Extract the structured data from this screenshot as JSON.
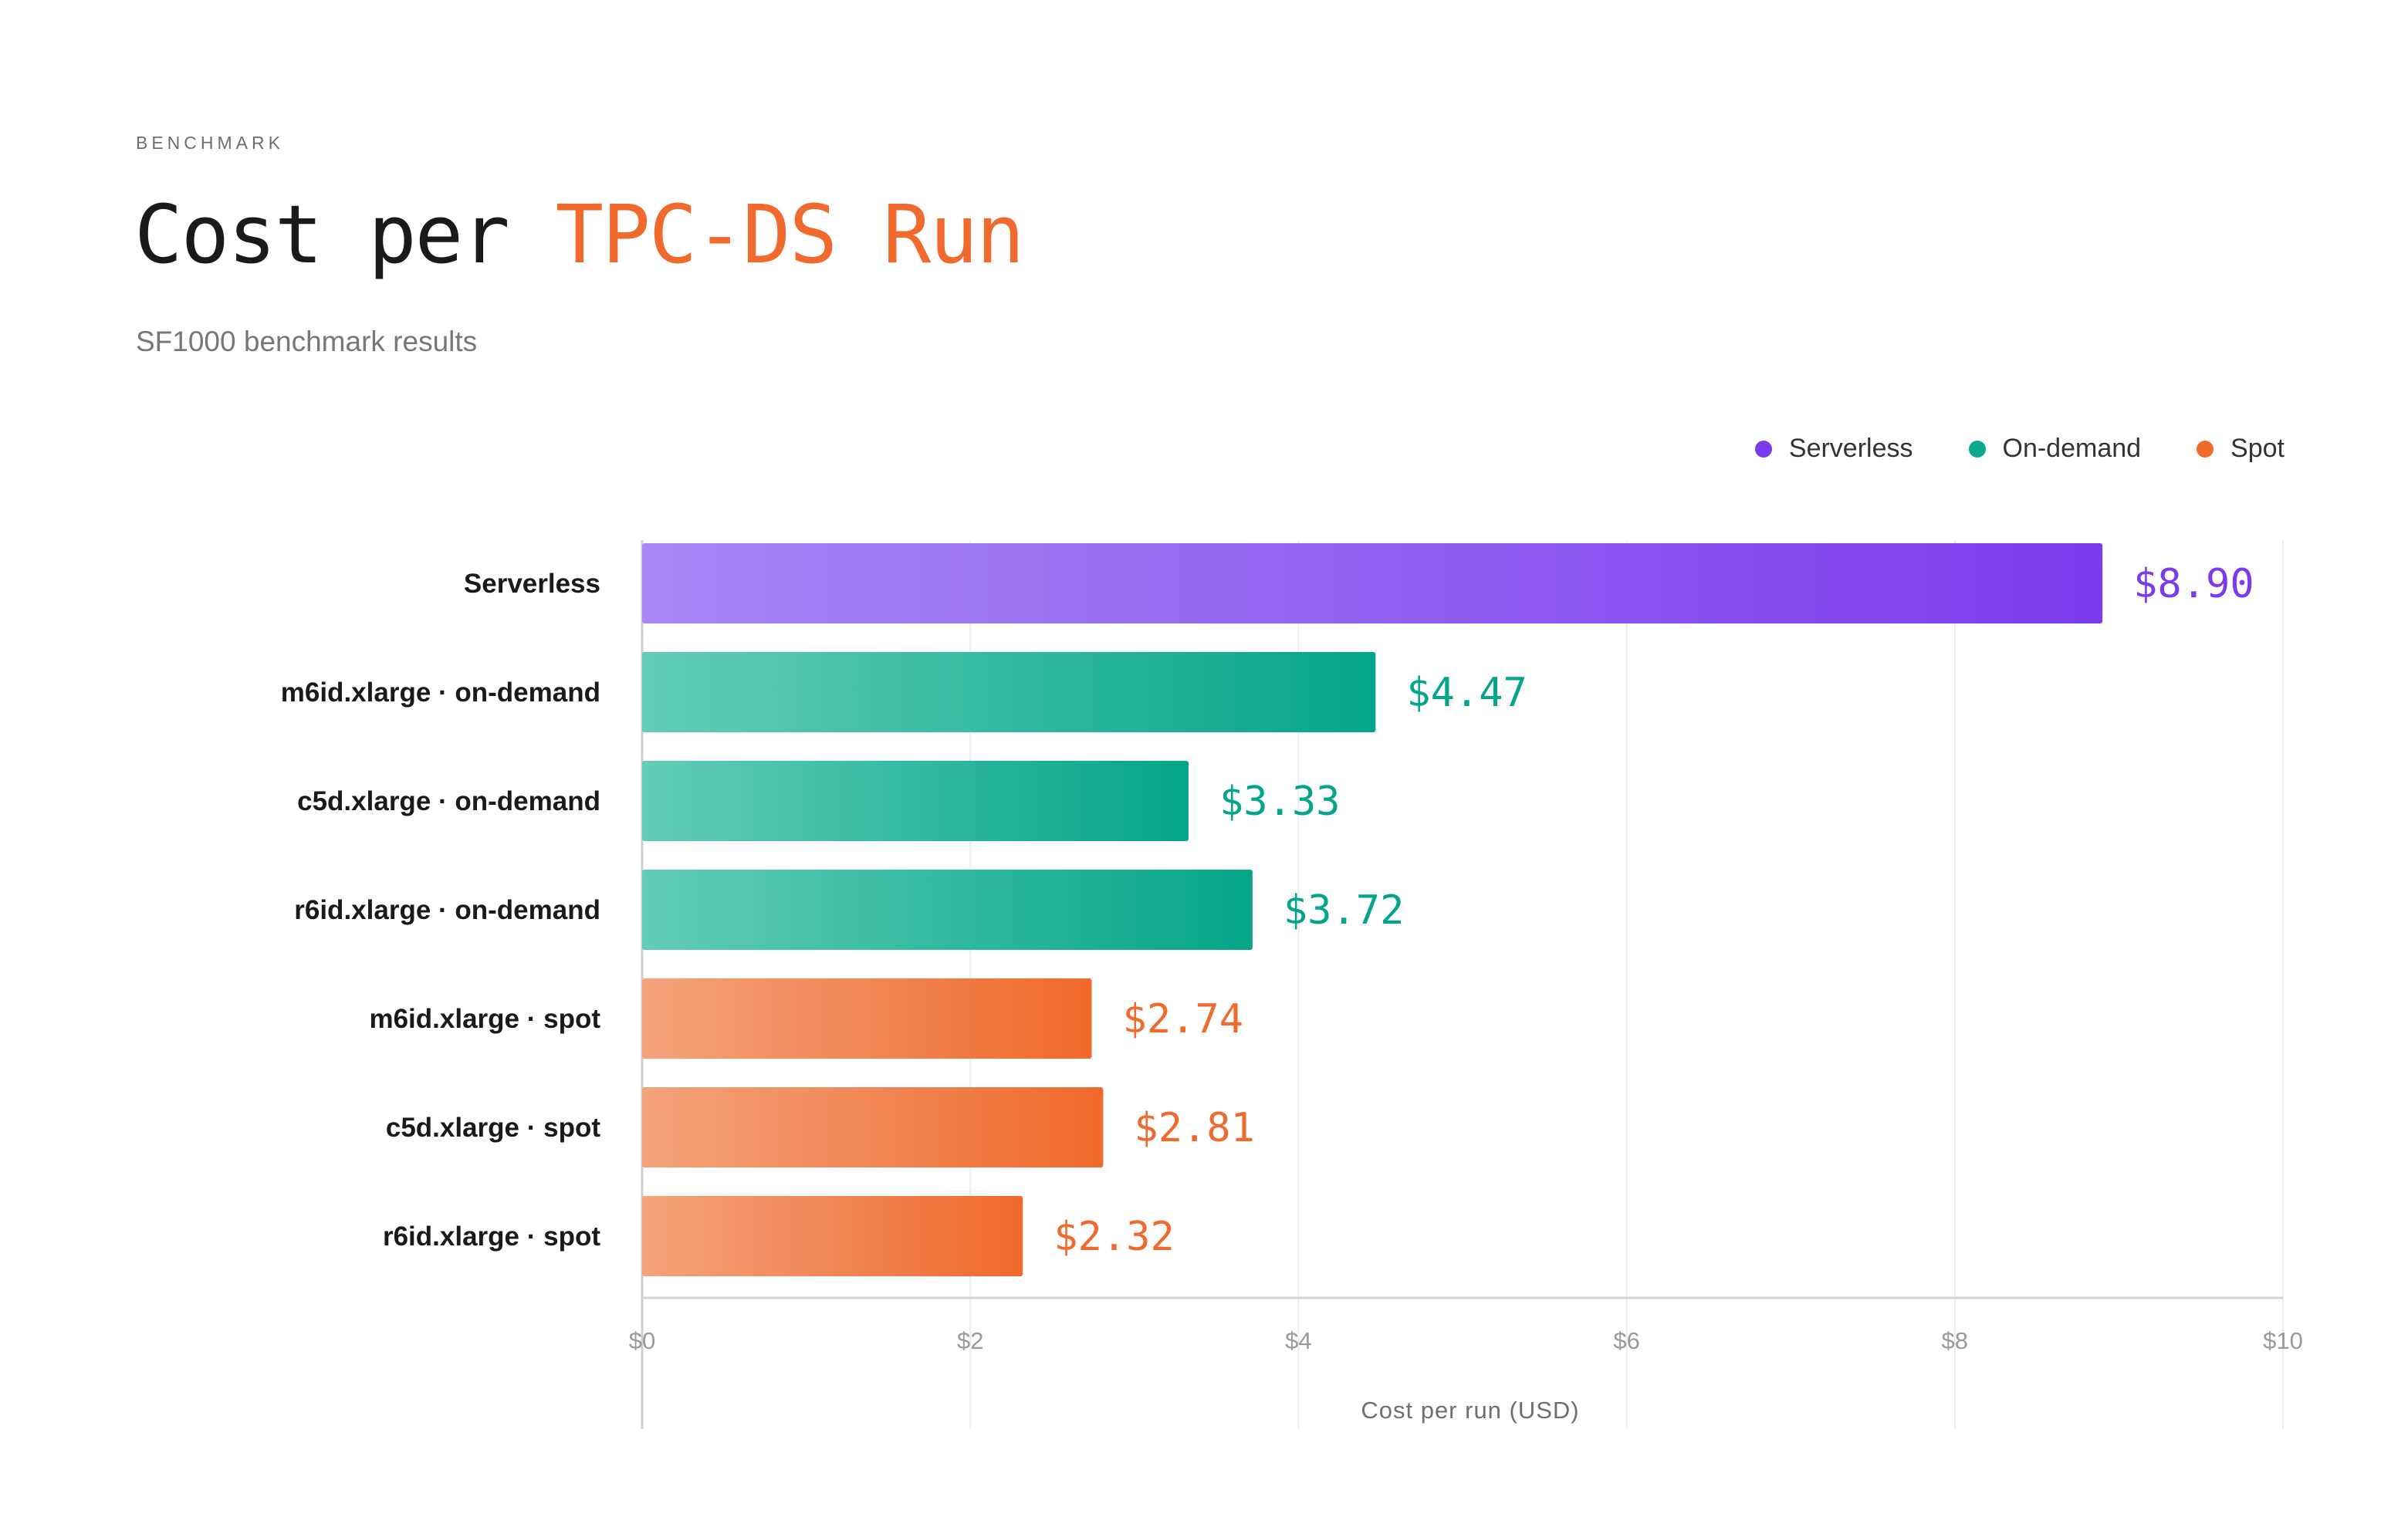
{
  "header": {
    "eyebrow": "BENCHMARK",
    "title_main": "Cost per ",
    "title_accent": "TPC-DS Run",
    "subtitle": "SF1000 benchmark results"
  },
  "legend": [
    {
      "label": "Serverless",
      "color": "#7c3aed"
    },
    {
      "label": "On-demand",
      "color": "#0aa88c"
    },
    {
      "label": "Spot",
      "color": "#f06a2e"
    }
  ],
  "chart_data": {
    "type": "bar",
    "orientation": "horizontal",
    "categories": [
      "Serverless",
      "m6id.xlarge · on-demand",
      "c5d.xlarge · on-demand",
      "r6id.xlarge · on-demand",
      "m6id.xlarge · spot",
      "c5d.xlarge · spot",
      "r6id.xlarge · spot"
    ],
    "values": [
      8.9,
      4.47,
      3.33,
      3.72,
      2.74,
      2.81,
      2.32
    ],
    "value_labels": [
      "$8.90",
      "$4.47",
      "$3.33",
      "$3.72",
      "$2.74",
      "$2.81",
      "$2.32"
    ],
    "groups": [
      "Serverless",
      "On-demand",
      "On-demand",
      "On-demand",
      "Spot",
      "Spot",
      "Spot"
    ],
    "xlim": [
      0,
      10
    ],
    "xticks": [
      0,
      2,
      4,
      6,
      8,
      10
    ],
    "xtick_labels": [
      "$0",
      "$2",
      "$4",
      "$6",
      "$8",
      "$10"
    ],
    "xlabel": "Cost per run (USD)",
    "grid": true,
    "legend_position": "top-right",
    "colors": {
      "Serverless": {
        "light": "#a987f5",
        "dark": "#7c3aed"
      },
      "On-demand": {
        "light": "#62cdb9",
        "dark": "#04a58a"
      },
      "Spot": {
        "light": "#f4a37c",
        "dark": "#ef6a2c"
      }
    }
  }
}
